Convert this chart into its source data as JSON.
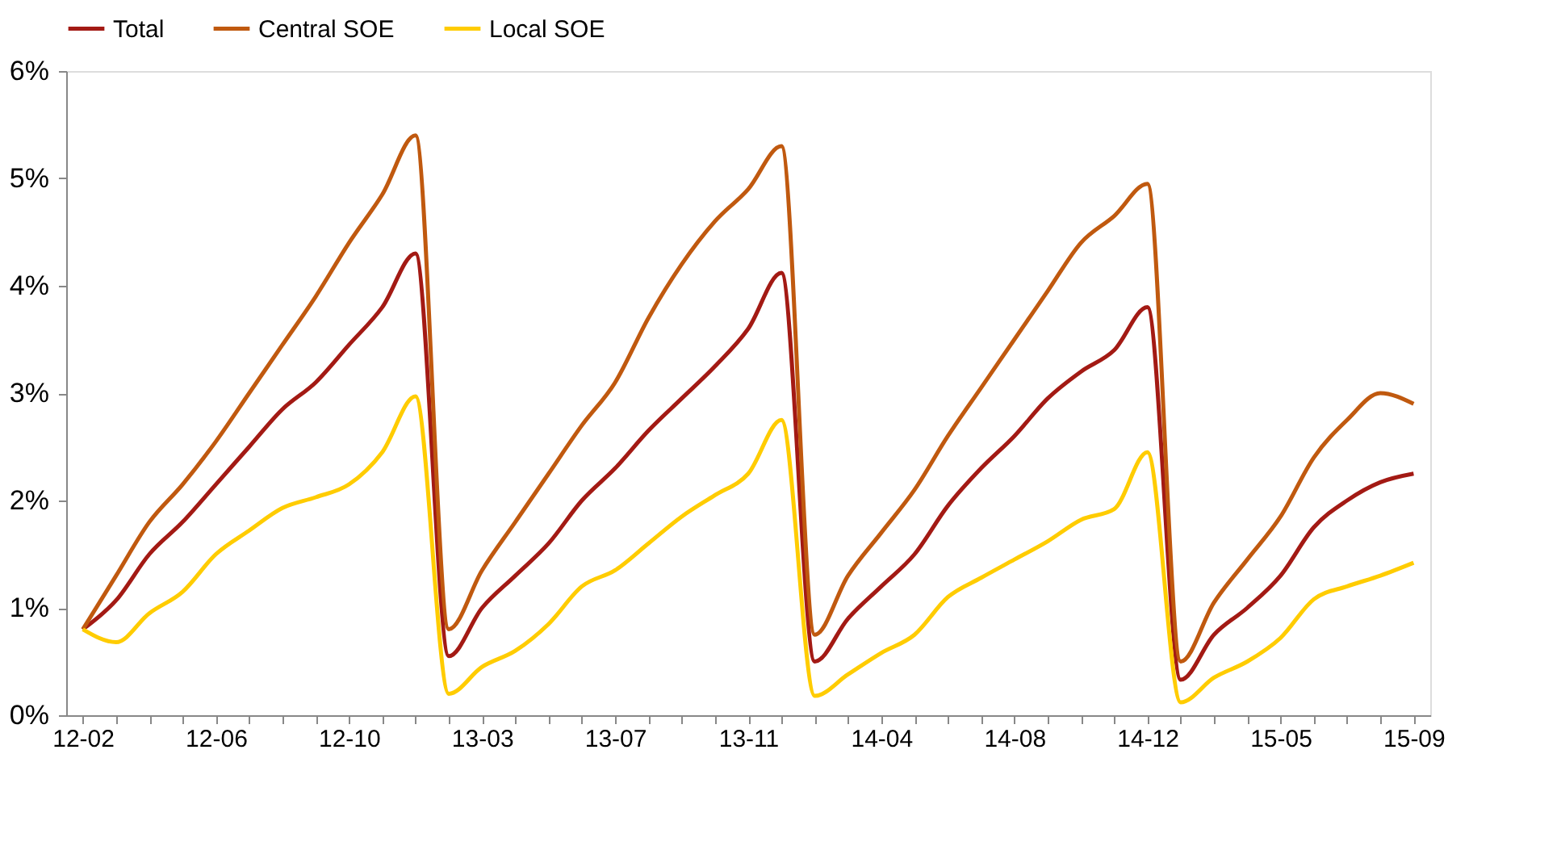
{
  "chart_data": {
    "type": "line",
    "categories": [
      "12-02",
      null,
      null,
      null,
      "12-06",
      null,
      null,
      null,
      "12-10",
      null,
      null,
      null,
      "13-03",
      null,
      null,
      null,
      "13-07",
      null,
      null,
      null,
      "13-11",
      null,
      null,
      null,
      "14-04",
      null,
      null,
      null,
      "14-08",
      null,
      null,
      null,
      "14-12",
      null,
      null,
      null,
      "15-05",
      null,
      null,
      null,
      "15-09"
    ],
    "series": [
      {
        "name": "Total",
        "color": "#a31a14",
        "values": [
          0.8,
          1.07,
          1.5,
          1.8,
          2.15,
          2.5,
          2.85,
          3.1,
          3.45,
          3.8,
          4.3,
          0.55,
          1.0,
          1.3,
          1.6,
          2.0,
          2.3,
          2.65,
          2.95,
          3.25,
          3.6,
          4.12,
          0.5,
          0.9,
          1.2,
          1.5,
          1.95,
          2.3,
          2.6,
          2.95,
          3.2,
          3.4,
          3.8,
          0.33,
          0.75,
          1.0,
          1.3,
          1.75,
          2.0,
          2.17,
          2.25
        ]
      },
      {
        "name": "Central SOE",
        "color": "#c0590f",
        "values": [
          0.8,
          1.3,
          1.8,
          2.15,
          2.55,
          3.0,
          3.45,
          3.9,
          4.4,
          4.85,
          5.4,
          0.8,
          1.35,
          1.8,
          2.25,
          2.7,
          3.1,
          3.7,
          4.2,
          4.6,
          4.9,
          5.3,
          0.75,
          1.3,
          1.7,
          2.1,
          2.6,
          3.05,
          3.5,
          3.95,
          4.4,
          4.65,
          4.95,
          0.5,
          1.05,
          1.45,
          1.85,
          2.4,
          2.75,
          3.0,
          2.9
        ]
      },
      {
        "name": "Local SOE",
        "color": "#ffcc00",
        "values": [
          0.8,
          0.68,
          0.95,
          1.15,
          1.5,
          1.72,
          1.93,
          2.03,
          2.15,
          2.45,
          2.97,
          0.2,
          0.45,
          0.6,
          0.85,
          1.2,
          1.35,
          1.6,
          1.85,
          2.05,
          2.25,
          2.75,
          0.18,
          0.38,
          0.58,
          0.75,
          1.1,
          1.28,
          1.45,
          1.62,
          1.82,
          1.92,
          2.45,
          0.12,
          0.35,
          0.5,
          0.72,
          1.08,
          1.2,
          1.3,
          1.42
        ]
      }
    ],
    "ylim": [
      0,
      6
    ],
    "yticks": [
      {
        "value": 0,
        "label": "0%"
      },
      {
        "value": 1,
        "label": "1%"
      },
      {
        "value": 2,
        "label": "2%"
      },
      {
        "value": 3,
        "label": "3%"
      },
      {
        "value": 4,
        "label": "4%"
      },
      {
        "value": 5,
        "label": "5%"
      },
      {
        "value": 6,
        "label": "6%"
      }
    ],
    "grid": false,
    "legend": "top",
    "marker": "none",
    "line_style": "solid"
  }
}
